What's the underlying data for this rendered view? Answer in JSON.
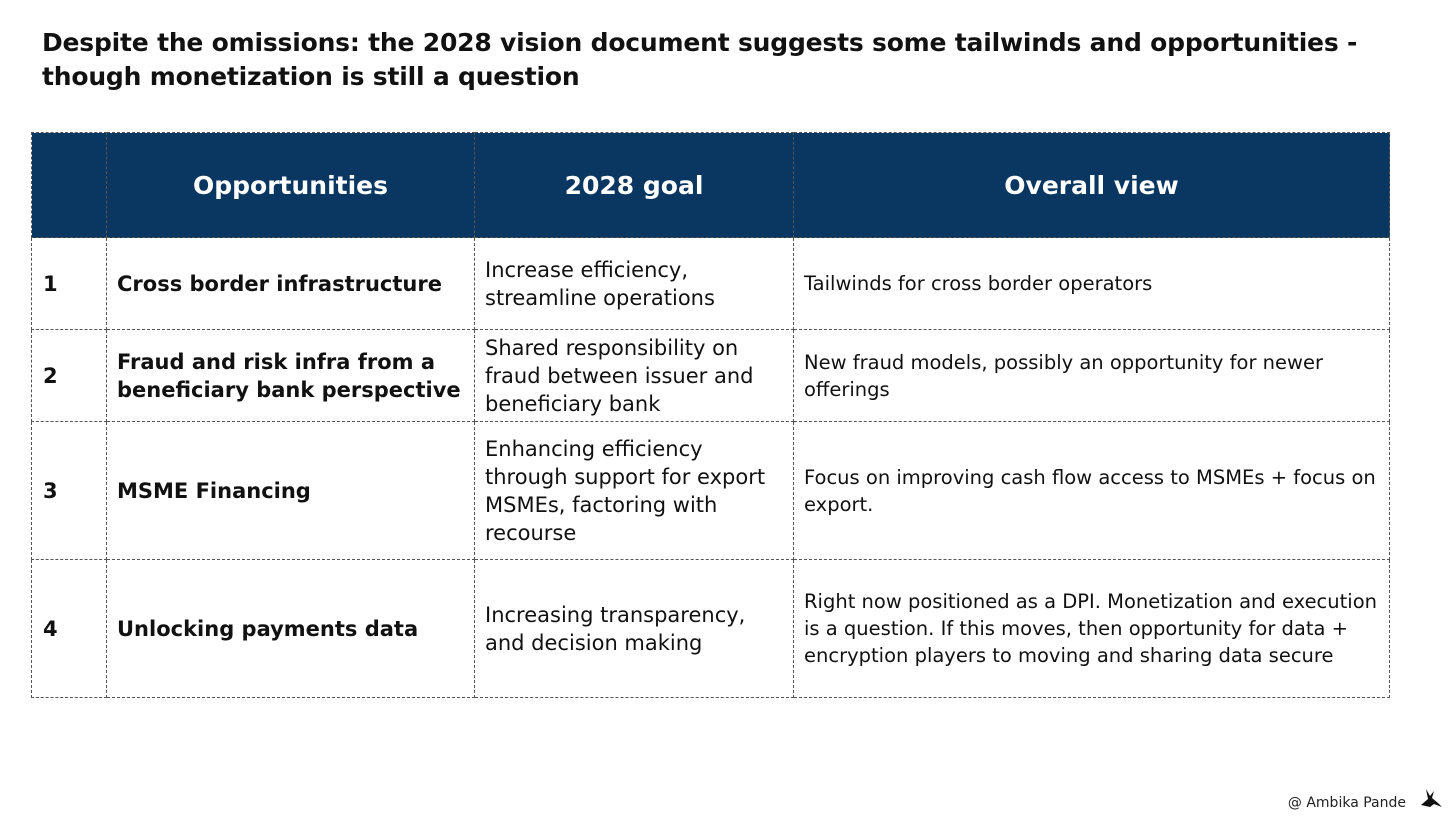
{
  "title": {
    "line1": "Despite the omissions: the 2028 vision document suggests some tailwinds and opportunities -",
    "line2": "though monetization is still a question"
  },
  "table": {
    "headers": {
      "number": "",
      "opportunities": "Opportunities",
      "goal": "2028 goal",
      "view": "Overall view"
    },
    "rows": [
      {
        "num": "1",
        "opportunity": "Cross border infrastructure",
        "goal": "Increase efficiency, streamline operations",
        "view": "Tailwinds for cross border operators"
      },
      {
        "num": "2",
        "opportunity": "Fraud and risk infra from a beneficiary bank perspective",
        "goal": "Shared responsibility on fraud between issuer and beneficiary bank",
        "view": "New fraud models, possibly an opportunity for newer offerings"
      },
      {
        "num": "3",
        "opportunity": "MSME Financing",
        "goal": "Enhancing efficiency through support for export MSMEs, factoring with recourse",
        "view": "Focus on improving cash flow access to MSMEs + focus on export."
      },
      {
        "num": "4",
        "opportunity": "Unlocking payments data",
        "goal": "Increasing transparency, and decision making",
        "view": "Right now positioned as a DPI. Monetization and execution is a question. If this moves, then opportunity for data + encryption players to moving and sharing data secure"
      }
    ]
  },
  "footer": {
    "credit": "@ Ambika Pande",
    "icon": "bird-icon"
  },
  "colors": {
    "header_bg": "#0a3761",
    "header_text": "#ffffff",
    "border": "#555555"
  }
}
